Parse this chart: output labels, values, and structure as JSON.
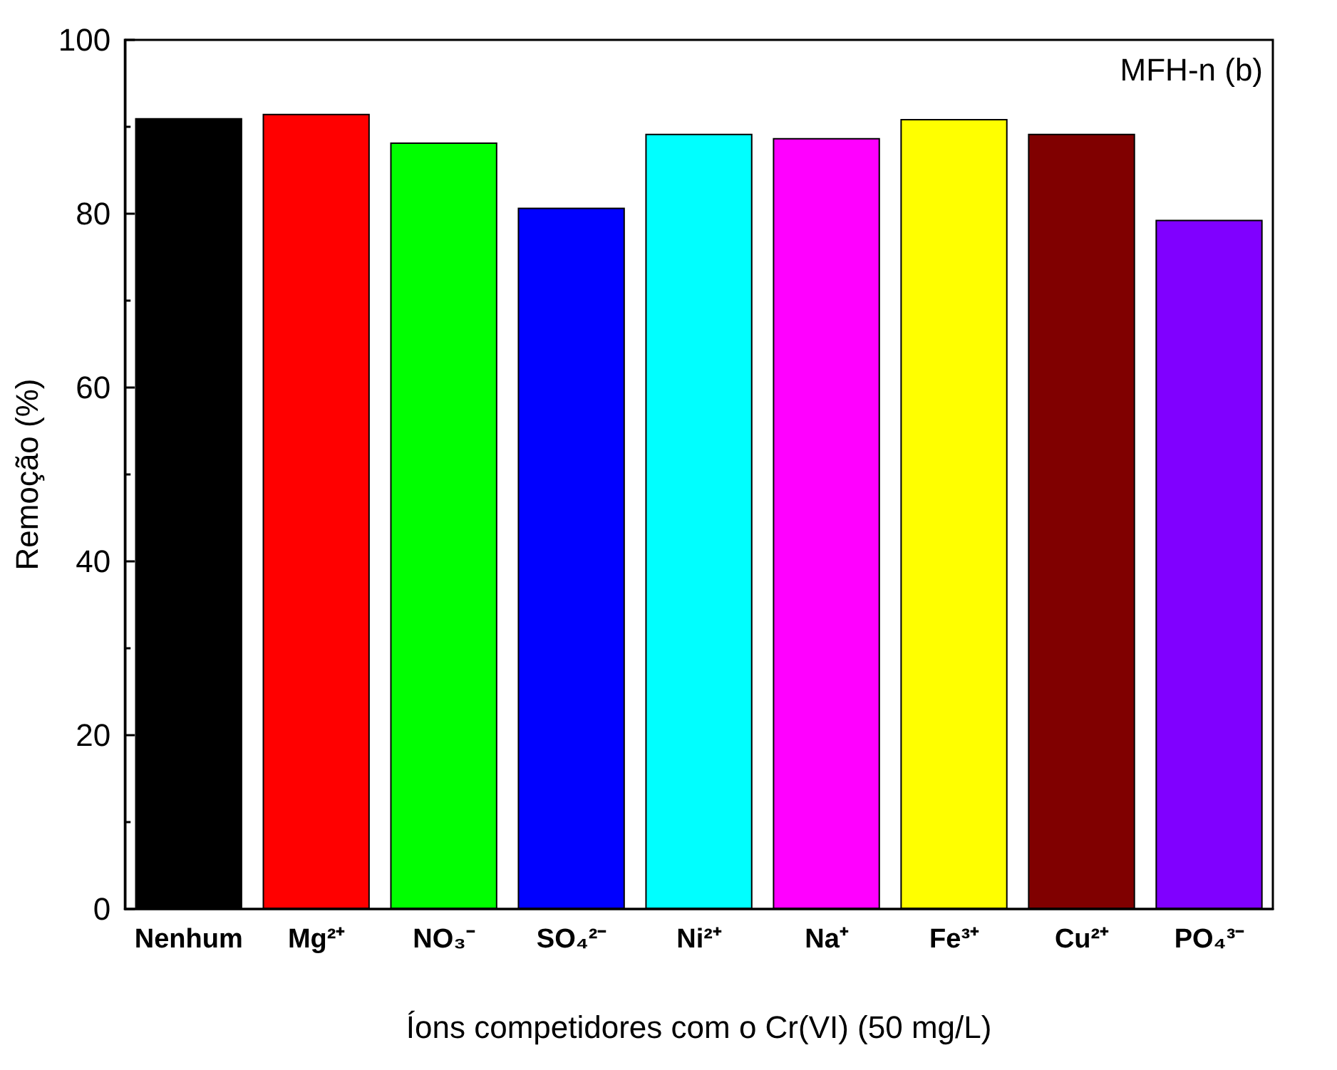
{
  "chart_data": {
    "type": "bar",
    "categories": [
      "Nenhum",
      "Mg²⁺",
      "NO₃⁻",
      "SO₄²⁻",
      "Ni²⁺",
      "Na⁺",
      "Fe³⁺",
      "Cu²⁺",
      "PO₄³⁻"
    ],
    "values": [
      91.0,
      91.5,
      88.2,
      80.7,
      89.2,
      88.7,
      90.9,
      89.2,
      79.3
    ],
    "colors": [
      "#000000",
      "#ff0000",
      "#00ff00",
      "#0000ff",
      "#00ffff",
      "#ff00ff",
      "#ffff00",
      "#800000",
      "#8000ff"
    ],
    "xlabel": "Íons competidores com o Cr(VI) (50 mg/L)",
    "ylabel": "Remoção (%)",
    "ylim": [
      0,
      100
    ],
    "yticks": [
      0,
      20,
      40,
      60,
      80,
      100
    ],
    "annotations": [
      "MFH-n (b)"
    ],
    "grid": false
  }
}
